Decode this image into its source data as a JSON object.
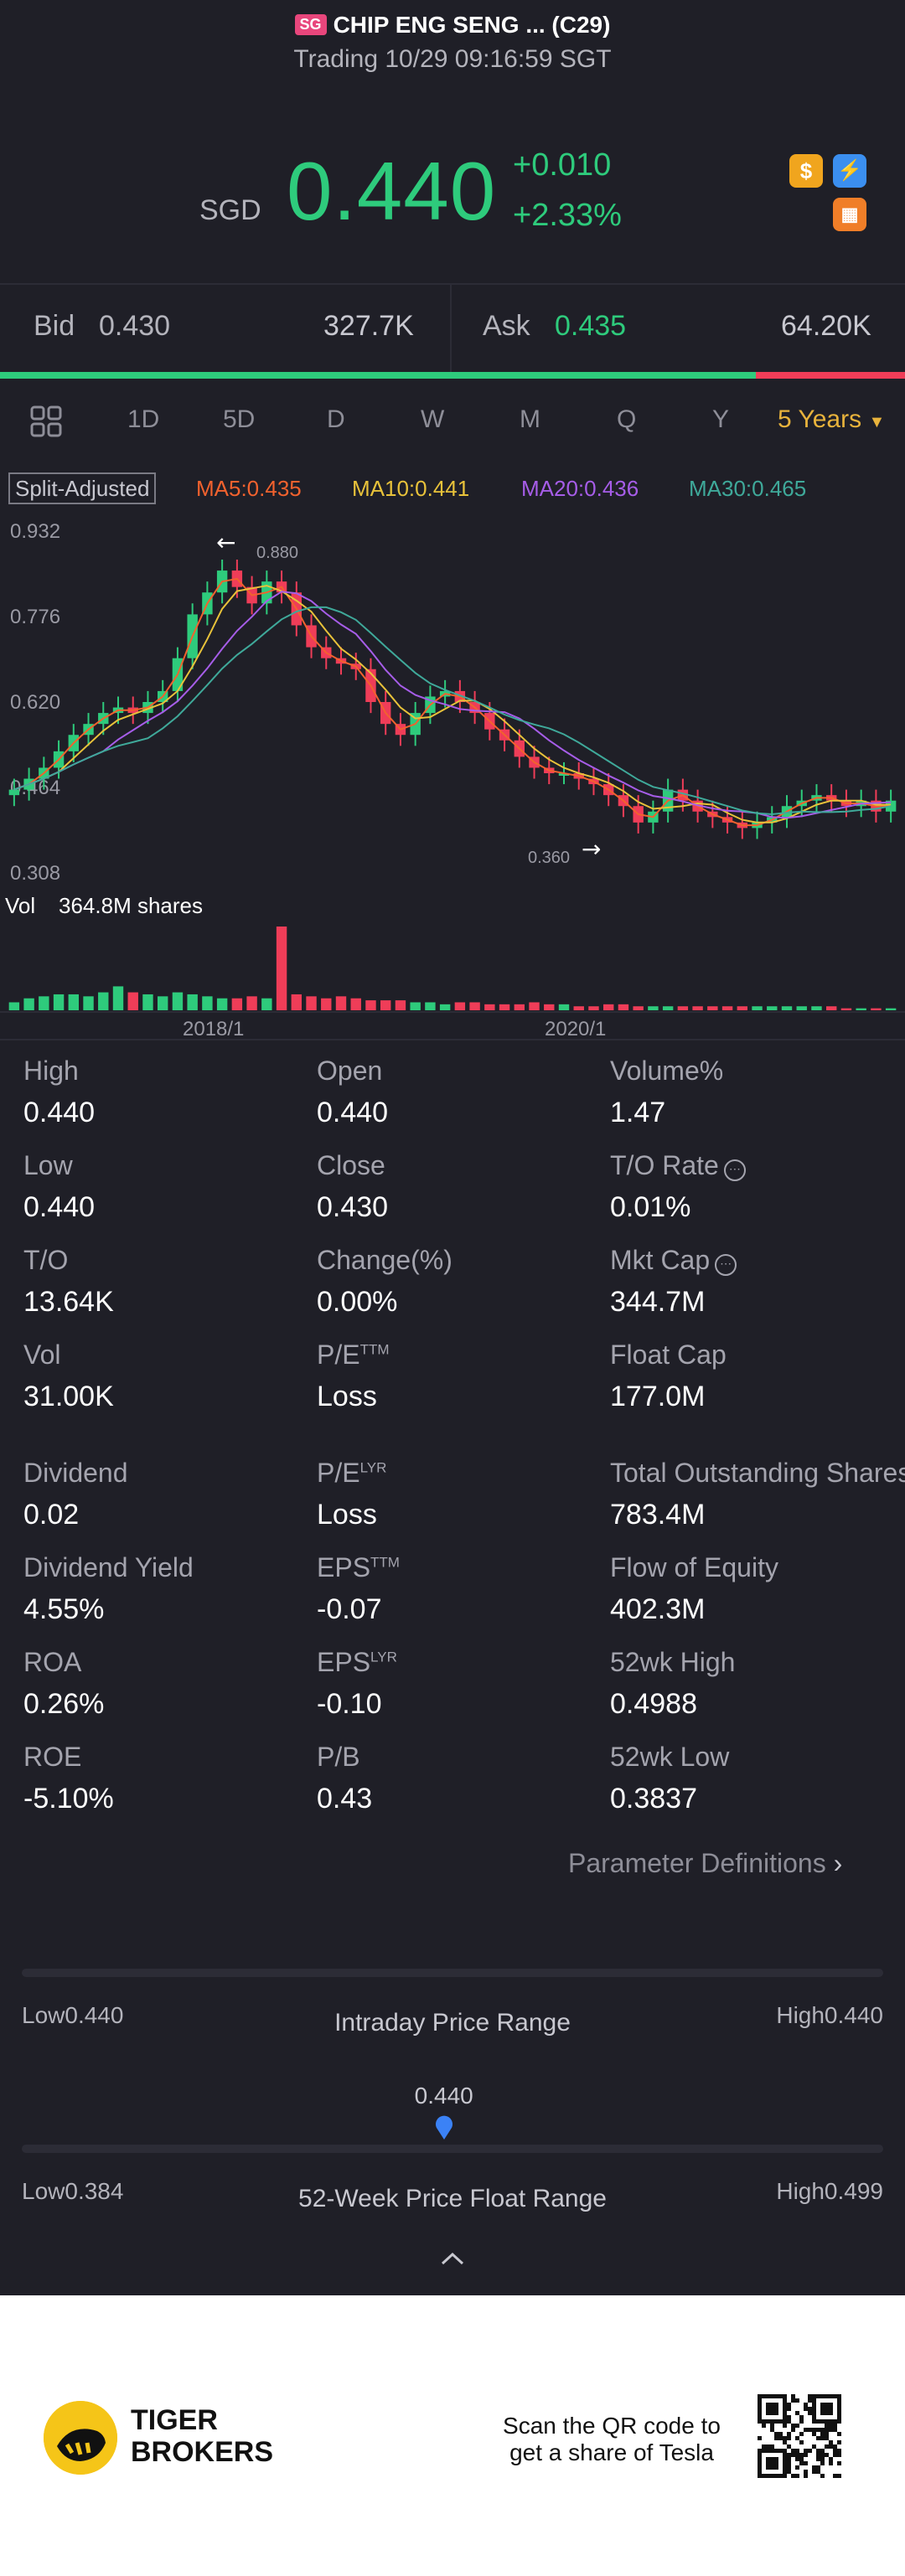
{
  "header": {
    "badge": "SG",
    "title": "CHIP ENG SENG ... (C29)",
    "subtitle": "Trading 10/29 09:16:59 SGT",
    "currency": "SGD",
    "price": "0.440",
    "change": "+0.010",
    "change_pct": "+2.33%",
    "icons": [
      "dollar-icon",
      "flash-icon",
      "calendar-icon"
    ]
  },
  "quote": {
    "bid_label": "Bid",
    "bid": "0.430",
    "bid_size": "327.7K",
    "ask_label": "Ask",
    "ask": "0.435",
    "ask_size": "64.20K",
    "bid_share": 0.835
  },
  "tabs": [
    "1D",
    "5D",
    "D",
    "W",
    "M",
    "Q",
    "Y",
    "5 Years"
  ],
  "active_tab": "5 Years",
  "ma": {
    "split": "Split-Adjusted",
    "ma5": "MA5:0.435",
    "ma10": "MA10:0.441",
    "ma20": "MA20:0.436",
    "ma30": "MA30:0.465"
  },
  "chart_data": {
    "type": "candlestick",
    "y_ticks": [
      "0.932",
      "0.776",
      "0.620",
      "0.464",
      "0.308"
    ],
    "ylim": [
      0.308,
      0.932
    ],
    "x_ticks": [
      "2018/1",
      "2020/1"
    ],
    "annotations": {
      "high": "0.880",
      "low": "0.360"
    },
    "volume_label": "Vol",
    "volume_value": "364.8M shares",
    "colors": {
      "up": "#2ecb7c",
      "down": "#ef3d58",
      "ma5": "#f2622e",
      "ma10": "#e8c23a",
      "ma20": "#a65de8",
      "ma30": "#3fa99a"
    },
    "closes": [
      0.46,
      0.48,
      0.5,
      0.53,
      0.56,
      0.58,
      0.6,
      0.61,
      0.6,
      0.62,
      0.64,
      0.7,
      0.78,
      0.82,
      0.86,
      0.83,
      0.8,
      0.84,
      0.82,
      0.76,
      0.72,
      0.7,
      0.69,
      0.68,
      0.62,
      0.58,
      0.56,
      0.6,
      0.63,
      0.64,
      0.62,
      0.6,
      0.57,
      0.55,
      0.52,
      0.5,
      0.49,
      0.49,
      0.48,
      0.47,
      0.45,
      0.43,
      0.4,
      0.42,
      0.46,
      0.44,
      0.42,
      0.41,
      0.4,
      0.39,
      0.4,
      0.41,
      0.43,
      0.44,
      0.45,
      0.44,
      0.43,
      0.44,
      0.42,
      0.44
    ],
    "volumes": [
      4,
      6,
      7,
      8,
      8,
      7,
      9,
      12,
      9,
      8,
      7,
      9,
      8,
      7,
      6,
      6,
      7,
      6,
      42,
      8,
      7,
      6,
      7,
      6,
      5,
      5,
      5,
      4,
      4,
      3,
      4,
      4,
      3,
      3,
      3,
      4,
      3,
      3,
      2,
      2,
      3,
      3,
      2,
      2,
      2,
      2,
      2,
      2,
      2,
      2,
      2,
      2,
      2,
      2,
      2,
      2,
      1,
      1,
      1,
      1
    ]
  },
  "stats": [
    {
      "label": "High",
      "value": "0.440"
    },
    {
      "label": "Open",
      "value": "0.440"
    },
    {
      "label": "Volume%",
      "value": "1.47"
    },
    {
      "label": "Low",
      "value": "0.440"
    },
    {
      "label": "Close",
      "value": "0.430"
    },
    {
      "label": "T/O Rate",
      "value": "0.01%"
    },
    {
      "label": "T/O",
      "value": "13.64K"
    },
    {
      "label": "Change(%)",
      "value": "0.00%"
    },
    {
      "label": "Mkt Cap",
      "value": "344.7M"
    },
    {
      "label": "Vol",
      "value": "31.00K"
    },
    {
      "label": "P/E",
      "sup": "TTM",
      "value": "Loss"
    },
    {
      "label": "Float Cap",
      "value": "177.0M"
    },
    {
      "label": "Dividend",
      "value": "0.02"
    },
    {
      "label": "P/E",
      "sup": "LYR",
      "value": "Loss"
    },
    {
      "label": "Total Outstanding Shares",
      "value": "783.4M"
    },
    {
      "label": "Dividend Yield",
      "value": "4.55%"
    },
    {
      "label": "EPS",
      "sup": "TTM",
      "value": "-0.07"
    },
    {
      "label": "Flow of Equity",
      "value": "402.3M"
    },
    {
      "label": "ROA",
      "value": "0.26%"
    },
    {
      "label": "EPS",
      "sup": "LYR",
      "value": "-0.10"
    },
    {
      "label": "52wk High",
      "value": "0.4988"
    },
    {
      "label": "ROE",
      "value": "-5.10%"
    },
    {
      "label": "P/B",
      "value": "0.43"
    },
    {
      "label": "52wk Low",
      "value": "0.3837"
    }
  ],
  "param_def": "Parameter Definitions",
  "intraday": {
    "low": "Low0.440",
    "high": "High0.440",
    "title": "Intraday Price Range"
  },
  "week52": {
    "marker": "0.440",
    "low": "Low0.384",
    "high": "High0.499",
    "title": "52-Week Price Float Range",
    "position": 0.49
  },
  "footer": {
    "brand_line1": "TIGER",
    "brand_line2": "BROKERS",
    "qr_line1": "Scan the QR code to",
    "qr_line2": "get a share of Tesla"
  }
}
